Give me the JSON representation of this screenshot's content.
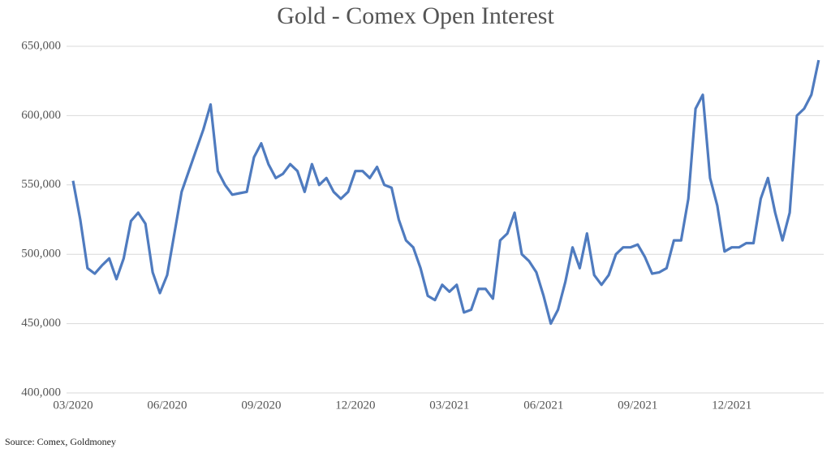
{
  "chart_data": {
    "type": "line",
    "title": "Gold - Comex Open Interest",
    "source": "Source: Comex, Goldmoney",
    "categories": [
      "03/2020",
      null,
      null,
      null,
      null,
      null,
      null,
      null,
      null,
      null,
      null,
      null,
      null,
      "06/2020",
      null,
      null,
      null,
      null,
      null,
      null,
      null,
      null,
      null,
      null,
      null,
      null,
      "09/2020",
      null,
      null,
      null,
      null,
      null,
      null,
      null,
      null,
      null,
      null,
      null,
      null,
      "12/2020",
      null,
      null,
      null,
      null,
      null,
      null,
      null,
      null,
      null,
      null,
      null,
      null,
      "03/2021",
      null,
      null,
      null,
      null,
      null,
      null,
      null,
      null,
      null,
      null,
      null,
      null,
      "06/2021",
      null,
      null,
      null,
      null,
      null,
      null,
      null,
      null,
      null,
      null,
      null,
      null,
      "09/2021",
      null,
      null,
      null,
      null,
      null,
      null,
      null,
      null,
      null,
      null,
      null,
      null,
      "12/2021",
      null,
      null,
      null,
      null,
      null,
      null,
      null,
      null,
      null,
      null,
      null,
      null
    ],
    "series": [
      {
        "name": "Open Interest",
        "color": "#4f7bbf",
        "values": [
          553000,
          525000,
          490000,
          486000,
          492000,
          497000,
          482000,
          497000,
          524000,
          530000,
          522000,
          487000,
          472000,
          485000,
          515000,
          545000,
          560000,
          575000,
          590000,
          608000,
          560000,
          550000,
          543000,
          544000,
          545000,
          570000,
          580000,
          565000,
          555000,
          558000,
          565000,
          560000,
          545000,
          565000,
          550000,
          555000,
          545000,
          540000,
          545000,
          560000,
          560000,
          555000,
          563000,
          550000,
          548000,
          525000,
          510000,
          505000,
          490000,
          470000,
          467000,
          478000,
          473000,
          478000,
          458000,
          460000,
          475000,
          475000,
          468000,
          510000,
          515000,
          530000,
          500000,
          495000,
          487000,
          470000,
          450000,
          460000,
          480000,
          505000,
          490000,
          515000,
          485000,
          478000,
          485000,
          500000,
          505000,
          505000,
          507000,
          498000,
          486000,
          487000,
          490000,
          510000,
          510000,
          540000,
          605000,
          615000,
          555000,
          535000,
          502000,
          505000,
          505000,
          508000,
          508000,
          540000,
          555000,
          530000,
          510000,
          530000,
          600000,
          605000,
          615000,
          640000
        ]
      }
    ],
    "ylim": [
      400000,
      650000
    ],
    "yticks": [
      {
        "value": 400000,
        "label": "400,000"
      },
      {
        "value": 450000,
        "label": "450,000"
      },
      {
        "value": 500000,
        "label": "500,000"
      },
      {
        "value": 550000,
        "label": "550,000"
      },
      {
        "value": 600000,
        "label": "600,000"
      },
      {
        "value": 650000,
        "label": "650,000"
      }
    ],
    "grid": true
  }
}
